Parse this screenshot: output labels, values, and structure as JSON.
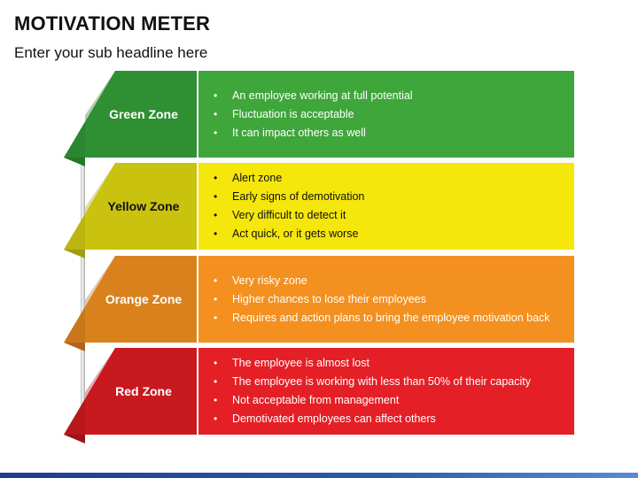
{
  "title": "MOTIVATION METER",
  "subtitle": "Enter your sub headline here",
  "zones": [
    {
      "name": "Green Zone",
      "color": "#3ea63a",
      "dark": "#23762a",
      "label_color": "#2f8f33",
      "text_color": "#ffffff",
      "items": [
        "An employee working at full potential",
        "Fluctuation is acceptable",
        "It can impact others as well"
      ]
    },
    {
      "name": "Yellow Zone",
      "color": "#f5e60c",
      "dark": "#a39c12",
      "label_color": "#c9c20f",
      "text_color": "#111111",
      "items": [
        "Alert zone",
        "Early signs of demotivation",
        "Very difficult to detect it",
        "Act quick, or it gets worse"
      ]
    },
    {
      "name": "Orange Zone",
      "color": "#f39020",
      "dark": "#b0641a",
      "label_color": "#d9821d",
      "text_color": "#ffffff",
      "items": [
        "Very risky zone",
        "Higher chances to lose their employees",
        "Requires and action plans to bring the employee motivation back"
      ]
    },
    {
      "name": "Red Zone",
      "color": "#e41f26",
      "dark": "#9c1418",
      "label_color": "#c8191f",
      "text_color": "#ffffff",
      "items": [
        "The employee is almost lost",
        "The employee is working with less than  50% of their capacity",
        "Not acceptable from management",
        "Demotivated employees can affect others"
      ]
    }
  ]
}
